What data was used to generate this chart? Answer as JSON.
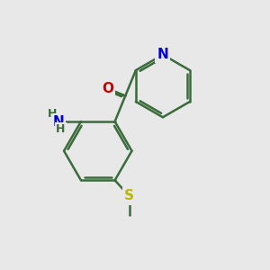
{
  "background_color": "#e8e8e8",
  "bond_color": "#3a6b3a",
  "bond_width": 1.8,
  "atom_colors": {
    "N": "#0000cc",
    "O": "#cc0000",
    "S": "#b8b800",
    "C": "#3a6b3a"
  },
  "figsize": [
    3.0,
    3.0
  ],
  "dpi": 100,
  "xlim": [
    0,
    10
  ],
  "ylim": [
    0,
    10
  ]
}
